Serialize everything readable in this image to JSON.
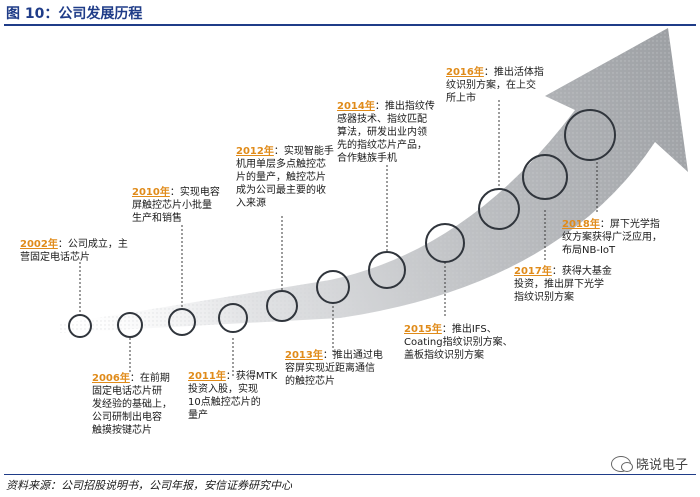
{
  "figure": {
    "title": "图 10：公司发展历程",
    "source": "资料来源：公司招股说明书，公司年报，安信证券研究中心",
    "watermark": "晓说电子"
  },
  "colors": {
    "title": "#1f3c88",
    "year": "#e08b1a",
    "arrow": "#a7a9ad",
    "circle_stroke": "#30353c"
  },
  "milestones": [
    {
      "year": "2002年",
      "text": "：公司成立，主\n营固定电话芯片"
    },
    {
      "year": "2006年",
      "text": "：在前期\n固定电话芯片研\n发经验的基础上，\n公司研制出电容\n触摸按键芯片"
    },
    {
      "year": "2010年",
      "text": "：实现电容\n屏触控芯片小批量\n生产和销售"
    },
    {
      "year": "2011年",
      "text": "：获得MTK\n投资入股，实现\n10点触控芯片的\n量产"
    },
    {
      "year": "2012年",
      "text": "：实现智能手\n机用单层多点触控芯\n片的量产，触控芯片\n成为公司最主要的收\n入来源"
    },
    {
      "year": "2013年",
      "text": "：推出通过电\n容屏实现近距离通信\n的触控芯片"
    },
    {
      "year": "2014年",
      "text": "：推出指纹传\n感器技术、指纹匹配\n算法，研发出业内领\n先的指纹芯片产品，\n合作魅族手机"
    },
    {
      "year": "2015年",
      "text": "：推出IFS、\nCoating指纹识别方案、\n盖板指纹识别方案"
    },
    {
      "year": "2016年",
      "text": "：推出活体指\n纹识别方案，在上交\n所上市"
    },
    {
      "year": "2017年",
      "text": "：获得大基金\n投资，推出屏下光学\n指纹识别方案"
    },
    {
      "year": "2018年",
      "text": "：屏下光学指\n纹方案获得广泛应用，\n布局NB-IoT"
    }
  ]
}
